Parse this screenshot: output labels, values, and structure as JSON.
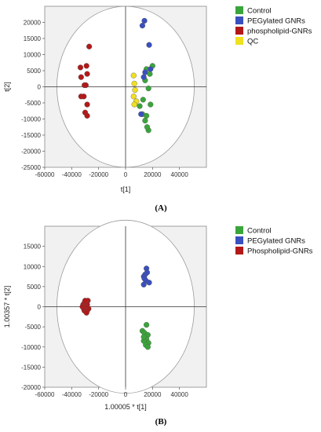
{
  "chart_data": [
    {
      "type": "scatter",
      "caption": "(A)",
      "xlabel": "t[1]",
      "ylabel": "t[2]",
      "xlim": [
        -60000,
        60000
      ],
      "ylim": [
        -25000,
        25000
      ],
      "xticks": [
        -60000,
        -40000,
        -20000,
        0,
        20000,
        40000
      ],
      "yticks": [
        -25000,
        -20000,
        -15000,
        -10000,
        -5000,
        0,
        5000,
        10000,
        15000,
        20000
      ],
      "ellipse": {
        "rx": 51000,
        "ry": 25000
      },
      "legend_position": "right",
      "series": [
        {
          "name": "Control",
          "color": "#3aa53a",
          "x": [
            18000,
            20000,
            15500,
            14500,
            17000,
            18500,
            13000,
            15500,
            10500,
            12500,
            14500,
            17000,
            16000
          ],
          "y": [
            4000,
            6500,
            5500,
            2000,
            -500,
            -5500,
            -4000,
            -9000,
            -6000,
            -8500,
            -10500,
            -13500,
            -12500
          ]
        },
        {
          "name": "PEGylated GNRs",
          "color": "#3a4fc0",
          "x": [
            14000,
            12500,
            17500,
            18500,
            14500,
            13500,
            11500
          ],
          "y": [
            20500,
            19000,
            13000,
            5500,
            4500,
            3000,
            -8500
          ]
        },
        {
          "name": "phospholipid-GNRs",
          "color": "#b31818",
          "x": [
            -27000,
            -33500,
            -29000,
            -28500,
            -33000,
            -30500,
            -29500,
            -33000,
            -31000,
            -28500,
            -30000,
            -28500
          ],
          "y": [
            12500,
            6000,
            6500,
            4000,
            3000,
            500,
            500,
            -3000,
            -3000,
            -5500,
            -8000,
            -9000
          ]
        },
        {
          "name": "QC",
          "color": "#f0e020",
          "x": [
            6000,
            6500,
            7000,
            6000,
            8000,
            6500
          ],
          "y": [
            3500,
            1000,
            -1000,
            -3000,
            -4500,
            -5500
          ]
        }
      ]
    },
    {
      "type": "scatter",
      "caption": "(B)",
      "xlabel": "1.00005 * t[1]",
      "ylabel": "1.00357 * t[2]",
      "xlim": [
        -60000,
        60000
      ],
      "ylim": [
        -20000,
        20000
      ],
      "xticks": [
        -60000,
        -40000,
        -20000,
        0,
        20000,
        40000
      ],
      "yticks": [
        -20000,
        -15000,
        -10000,
        -5000,
        0,
        5000,
        10000,
        15000
      ],
      "ellipse": {
        "rx": 51000,
        "ry": 21500
      },
      "legend_position": "right",
      "series": [
        {
          "name": "Control",
          "color": "#3aa53a",
          "x": [
            15500,
            12500,
            14000,
            16500,
            15500,
            13500,
            17000,
            15000,
            16500,
            13500
          ],
          "y": [
            -4500,
            -6000,
            -6500,
            -7000,
            -8000,
            -8500,
            -9000,
            -9500,
            -10000,
            -7500
          ]
        },
        {
          "name": "PEGylated GNRs",
          "color": "#3a4fc0",
          "x": [
            15500,
            16000,
            14500,
            13500,
            14000,
            15000,
            17500,
            13500
          ],
          "y": [
            9500,
            8500,
            8000,
            7500,
            7000,
            6500,
            6000,
            5500
          ]
        },
        {
          "name": "Phospholipid-GNRs",
          "color": "#b31818",
          "x": [
            -28000,
            -30500,
            -29000,
            -31500,
            -28500,
            -30000,
            -32000,
            -29500,
            -27500,
            -31000,
            -30500,
            -28500,
            -29000,
            -30000
          ],
          "y": [
            1500,
            1000,
            1000,
            500,
            500,
            0,
            0,
            0,
            -500,
            -500,
            -1000,
            -1000,
            -1500,
            1500
          ]
        }
      ]
    }
  ]
}
